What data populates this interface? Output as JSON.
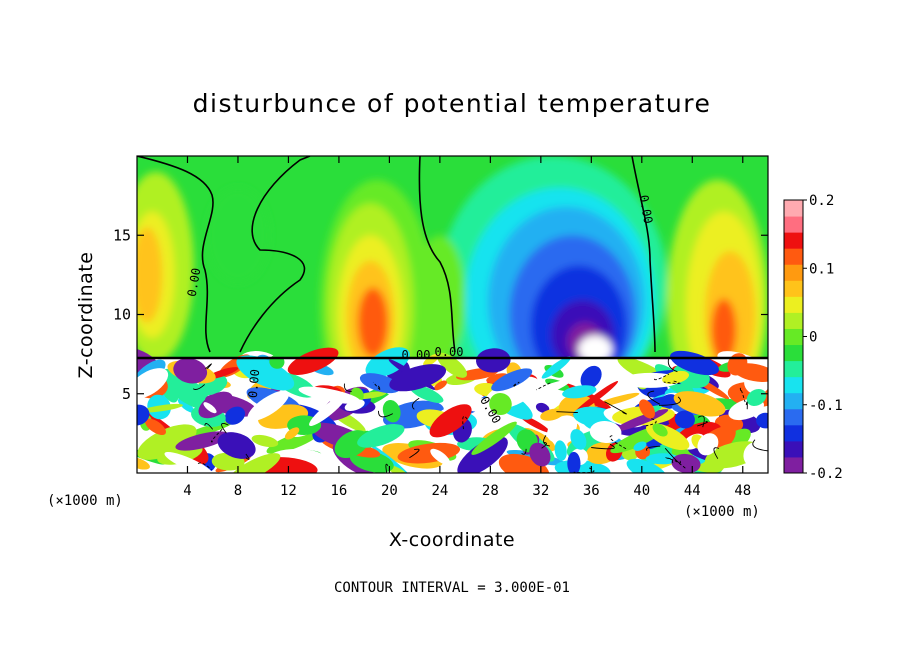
{
  "chart_data": {
    "type": "heatmap",
    "title": "disturbunce of potential temperature",
    "xlabel": "X-coordinate",
    "ylabel": "Z-coordinate",
    "x_unit_left": "(×1000 m)",
    "x_unit_right": "(×1000 m)",
    "xlim": [
      0,
      50
    ],
    "ylim": [
      0,
      20
    ],
    "xticks": [
      "4",
      "8",
      "12",
      "16",
      "20",
      "24",
      "28",
      "32",
      "36",
      "40",
      "44",
      "48"
    ],
    "yticks": [
      "5",
      "10",
      "15"
    ],
    "colorbar": {
      "range": [
        -0.2,
        0.2
      ],
      "labels": [
        "0.2",
        "0.1",
        "0",
        "-0.1",
        "-0.2"
      ],
      "colors": [
        "#7f1fa0",
        "#3a10b8",
        "#1030e0",
        "#2a6bf0",
        "#23b0f2",
        "#18e3ef",
        "#23ee9a",
        "#2ade3a",
        "#66ea25",
        "#b0f024",
        "#ecef20",
        "#ffc31a",
        "#ff9a10",
        "#ff5a10",
        "#ee1010",
        "#ff6e80",
        "#ffaab0"
      ]
    },
    "contour_labels": [
      "0.00",
      "0.00",
      "0.00",
      "0.00",
      "0.00",
      "0.00"
    ],
    "features": [
      {
        "name": "stable layer interface",
        "z": 7.2
      },
      {
        "name": "warm anomaly",
        "x": 18,
        "z": 10,
        "value": 0.15
      },
      {
        "name": "cold anomaly",
        "x": 35,
        "z": 10,
        "value": -0.2
      },
      {
        "name": "warm anomaly",
        "x": 46,
        "z": 10,
        "value": 0.12
      },
      {
        "name": "warm anomaly",
        "x": 1,
        "z": 13,
        "value": 0.1
      }
    ],
    "footer": "CONTOUR INTERVAL = 3.000E-01"
  }
}
